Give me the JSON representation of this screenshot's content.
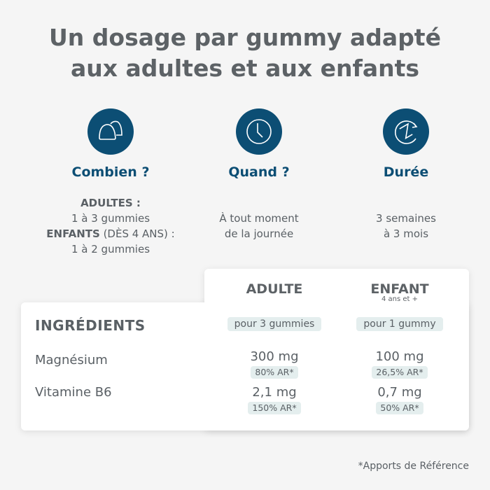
{
  "title": {
    "line1": "Un dosage par gummy adapté",
    "line2": "aux adultes et aux enfants"
  },
  "colors": {
    "accent": "#0c4e74",
    "text": "#5a6065",
    "pill": "#e4eeee",
    "background": "#f5f5f5"
  },
  "features": [
    {
      "icon": "gummies-icon",
      "heading": "Combien ?",
      "lines": [
        {
          "bold": "ADULTES :",
          "rest": ""
        },
        {
          "bold": "",
          "rest": "1 à 3 gummies"
        },
        {
          "bold": "ENFANTS",
          "rest": " (DÈS 4 ANS) :"
        },
        {
          "bold": "",
          "rest": "1 à 2 gummies"
        }
      ]
    },
    {
      "icon": "clock-icon",
      "heading": "Quand ?",
      "lines": [
        "À tout moment",
        "de la journée"
      ]
    },
    {
      "icon": "hourglass-cycle-icon",
      "heading": "Durée",
      "lines": [
        "3 semaines",
        "à 3 mois"
      ]
    }
  ],
  "table": {
    "ingredients_label": "INGRÉDIENTS",
    "columns": [
      {
        "label": "ADULTE",
        "sub": "",
        "dose": "pour 3 gummies"
      },
      {
        "label": "ENFANT",
        "sub": "4 ans et +",
        "dose": "pour 1 gummy"
      }
    ],
    "rows": [
      {
        "name": "Magnésium",
        "values": [
          {
            "amount": "300 mg",
            "ar": "80% AR*"
          },
          {
            "amount": "100 mg",
            "ar": "26,5% AR*"
          }
        ]
      },
      {
        "name": "Vitamine B6",
        "values": [
          {
            "amount": "2,1 mg",
            "ar": "150% AR*"
          },
          {
            "amount": "0,7 mg",
            "ar": "50% AR*"
          }
        ]
      }
    ]
  },
  "footnote": "*Apports de Référence"
}
